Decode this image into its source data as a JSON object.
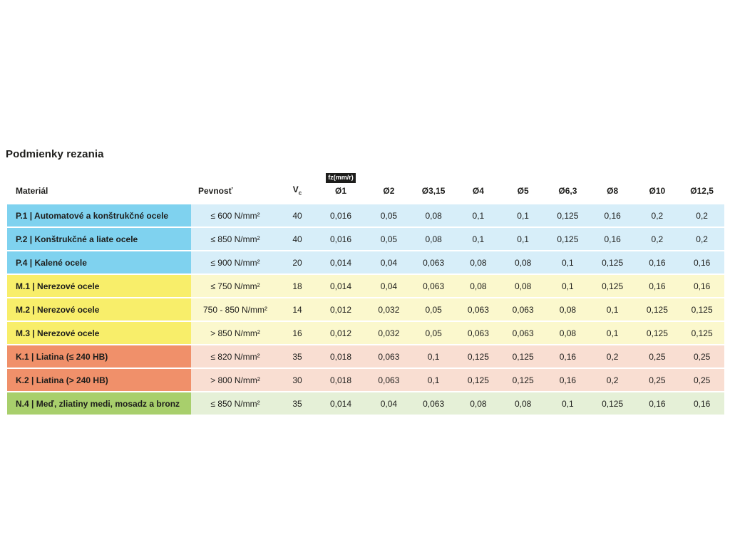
{
  "title": "Podmienky rezania",
  "table": {
    "col_material": "Materiál",
    "col_strength": "Pevnosť",
    "col_vc_base": "V",
    "col_vc_sub": "c",
    "fz_badge": "fz(mm/r)",
    "diameter_cols": [
      "Ø1",
      "Ø2",
      "Ø3,15",
      "Ø4",
      "Ø5",
      "Ø6,3",
      "Ø8",
      "Ø10",
      "Ø12,5"
    ],
    "rows": [
      {
        "group": "P",
        "material": "P.1 | Automatové a konštrukčné ocele",
        "strength": "≤ 600 N/mm²",
        "vc": "40",
        "fz": [
          "0,016",
          "0,05",
          "0,08",
          "0,1",
          "0,1",
          "0,125",
          "0,16",
          "0,2",
          "0,2"
        ]
      },
      {
        "group": "P",
        "material": "P.2 | Konštrukčné a liate ocele",
        "strength": "≤ 850 N/mm²",
        "vc": "40",
        "fz": [
          "0,016",
          "0,05",
          "0,08",
          "0,1",
          "0,1",
          "0,125",
          "0,16",
          "0,2",
          "0,2"
        ]
      },
      {
        "group": "P",
        "material": "P.4 | Kalené ocele",
        "strength": "≤ 900 N/mm²",
        "vc": "20",
        "fz": [
          "0,014",
          "0,04",
          "0,063",
          "0,08",
          "0,08",
          "0,1",
          "0,125",
          "0,16",
          "0,16"
        ]
      },
      {
        "group": "M",
        "material": "M.1 | Nerezové ocele",
        "strength": "≤ 750 N/mm²",
        "vc": "18",
        "fz": [
          "0,014",
          "0,04",
          "0,063",
          "0,08",
          "0,08",
          "0,1",
          "0,125",
          "0,16",
          "0,16"
        ]
      },
      {
        "group": "M",
        "material": "M.2 | Nerezové ocele",
        "strength": "750 - 850 N/mm²",
        "vc": "14",
        "fz": [
          "0,012",
          "0,032",
          "0,05",
          "0,063",
          "0,063",
          "0,08",
          "0,1",
          "0,125",
          "0,125"
        ]
      },
      {
        "group": "M",
        "material": "M.3 | Nerezové ocele",
        "strength": "> 850 N/mm²",
        "vc": "16",
        "fz": [
          "0,012",
          "0,032",
          "0,05",
          "0,063",
          "0,063",
          "0,08",
          "0,1",
          "0,125",
          "0,125"
        ]
      },
      {
        "group": "K",
        "material": "K.1 | Liatina (≤ 240 HB)",
        "strength": "≤ 820 N/mm²",
        "vc": "35",
        "fz": [
          "0,018",
          "0,063",
          "0,1",
          "0,125",
          "0,125",
          "0,16",
          "0,2",
          "0,25",
          "0,25"
        ]
      },
      {
        "group": "K",
        "material": "K.2 | Liatina (> 240 HB)",
        "strength": "> 800 N/mm²",
        "vc": "30",
        "fz": [
          "0,018",
          "0,063",
          "0,1",
          "0,125",
          "0,125",
          "0,16",
          "0,2",
          "0,25",
          "0,25"
        ]
      },
      {
        "group": "N",
        "material": "N.4 | Meď, zliatiny medi, mosadz a bronz",
        "strength": "≤ 850 N/mm²",
        "vc": "35",
        "fz": [
          "0,014",
          "0,04",
          "0,063",
          "0,08",
          "0,08",
          "0,1",
          "0,125",
          "0,16",
          "0,16"
        ]
      }
    ],
    "group_colors": {
      "P": {
        "label_bg": "#7fd2ef",
        "row_bg": "#d7eef9"
      },
      "M": {
        "label_bg": "#f8ee6a",
        "row_bg": "#fbf8cd"
      },
      "K": {
        "label_bg": "#f0906a",
        "row_bg": "#f9ded2"
      },
      "N": {
        "label_bg": "#a8cf6c",
        "row_bg": "#e5f0d7"
      }
    }
  }
}
